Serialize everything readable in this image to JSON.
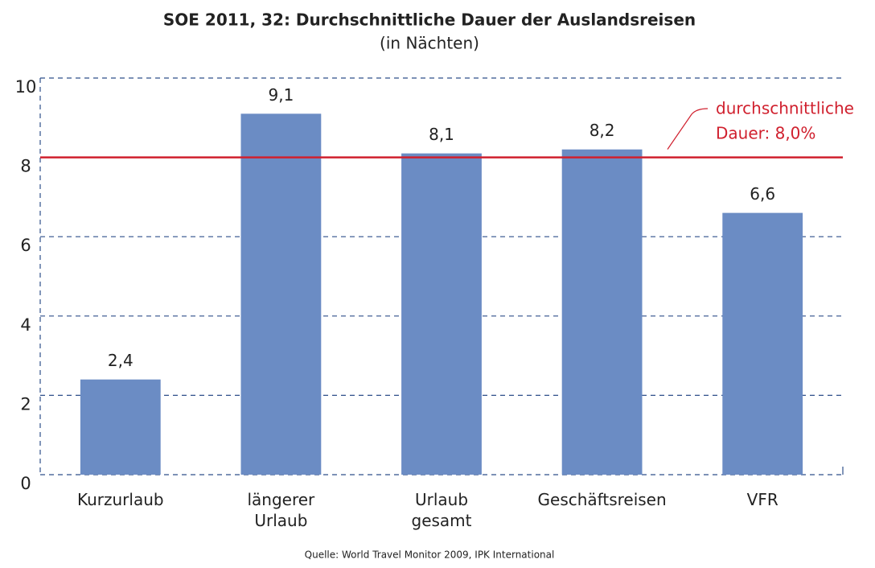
{
  "chart_data": {
    "type": "bar",
    "title": "SOE 2011, 32: Durchschnittliche Dauer der Auslandsreisen",
    "subtitle": "(in Nächten)",
    "categories": [
      "Kurzurlaub",
      "längerer Urlaub",
      "Urlaub gesamt",
      "Geschäftsreisen",
      "VFR"
    ],
    "values": [
      2.4,
      9.1,
      8.1,
      8.2,
      6.6
    ],
    "value_labels": [
      "2,4",
      "9,1",
      "8,1",
      "8,2",
      "6,6"
    ],
    "color": "#6b8cc4",
    "ylim": [
      0,
      10
    ],
    "yticks": [
      0,
      2,
      4,
      6,
      8,
      10
    ],
    "grid": true,
    "reference_line": {
      "value": 8.0,
      "color": "#d0202e",
      "annotation": [
        "durchschnittliche",
        "Dauer: 8,0%"
      ]
    },
    "source": "Quelle: World Travel Monitor 2009, IPK International"
  }
}
